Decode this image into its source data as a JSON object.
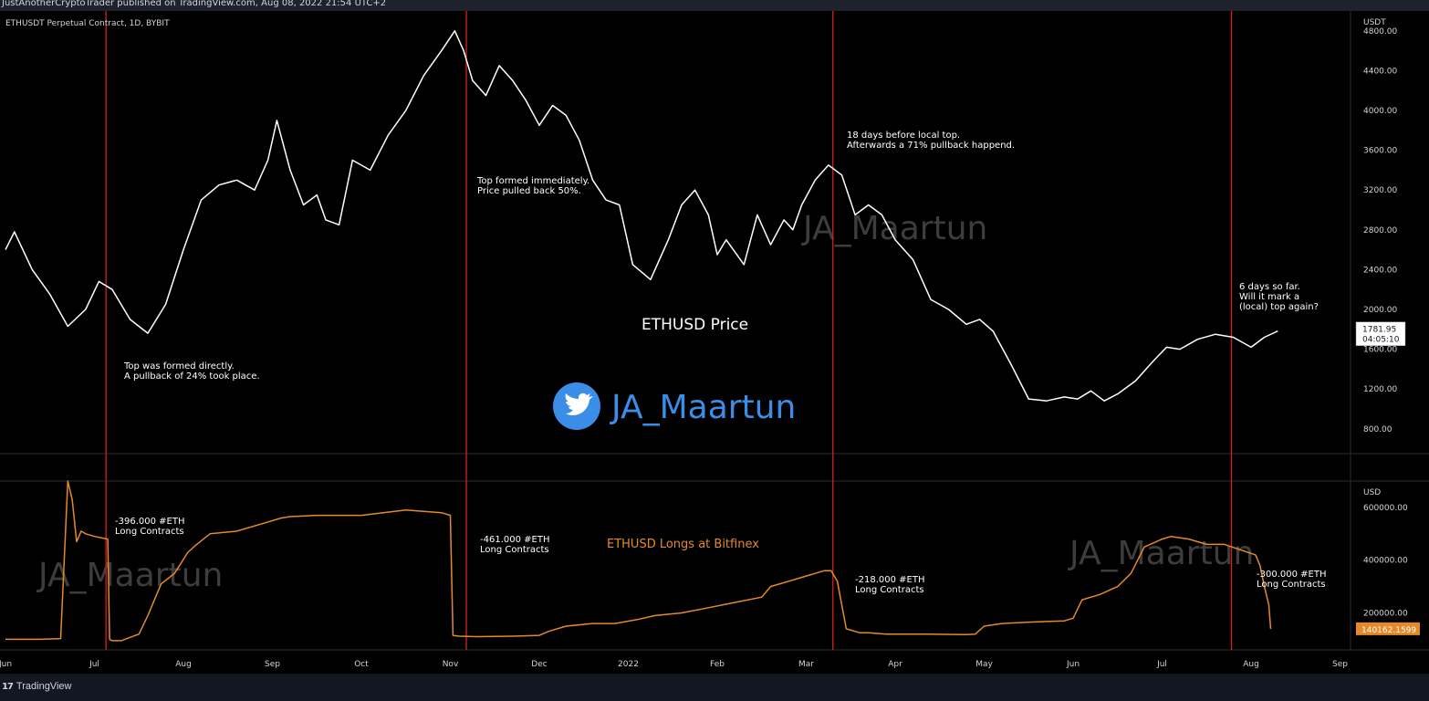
{
  "header": {
    "published": "JustAnotherCryptoTrader published on TradingView.com, Aug 08, 2022 21:54 UTC+2"
  },
  "footer": {
    "brand_mark": "17",
    "brand": "TradingView"
  },
  "chart_data": [
    {
      "type": "line",
      "symbol": "ETHUSDT Perpetual Contract, 1D, BYBIT",
      "title": "ETHUSD Price",
      "currency": "USDT",
      "ylim": [
        550,
        5000
      ],
      "yticks": [
        "4800.00",
        "4400.00",
        "4000.00",
        "3600.00",
        "3200.00",
        "2800.00",
        "2400.00",
        "2000.00",
        "1600.00",
        "1200.00",
        "800.00"
      ],
      "last_price": "1781.95",
      "countdown": "04:05:10",
      "line_color": "#ffffff",
      "watermark": "JA_Maartun",
      "x_months": [
        0,
        1,
        2,
        3,
        4,
        5,
        6,
        7,
        8,
        9,
        10,
        11,
        12,
        13,
        14
      ],
      "x_month_labels": [
        "Jun",
        "Jul",
        "Aug",
        "Sep",
        "Oct",
        "Nov",
        "Dec",
        "2022",
        "Feb",
        "Mar",
        "Apr",
        "May",
        "Jun",
        "Jul",
        "Aug",
        "Sep"
      ],
      "series": [
        {
          "x": [
            0,
            0.1,
            0.3,
            0.5,
            0.7,
            0.9,
            1.05,
            1.2,
            1.4,
            1.6,
            1.8,
            2.0,
            2.2,
            2.4,
            2.6,
            2.8,
            2.95,
            3.05,
            3.2,
            3.35,
            3.5,
            3.6,
            3.75,
            3.9,
            4.1,
            4.3,
            4.5,
            4.7,
            4.9,
            5.05,
            5.15,
            5.25,
            5.4,
            5.55,
            5.7,
            5.85,
            6.0,
            6.15,
            6.3,
            6.45,
            6.6,
            6.75,
            6.9,
            7.05,
            7.25,
            7.45,
            7.6,
            7.75,
            7.9,
            8.0,
            8.1,
            8.3,
            8.45,
            8.6,
            8.75,
            8.85,
            8.95,
            9.1,
            9.25,
            9.4,
            9.55,
            9.7,
            9.85,
            10.0,
            10.2,
            10.4,
            10.6,
            10.8,
            10.95,
            11.1,
            11.3,
            11.5,
            11.7,
            11.9,
            12.05,
            12.2,
            12.35,
            12.5,
            12.7,
            12.9,
            13.05,
            13.2,
            13.4,
            13.6,
            13.8,
            14.0,
            14.15,
            14.3
          ],
          "y": [
            2600,
            2780,
            2400,
            2150,
            1830,
            2000,
            2280,
            2200,
            1900,
            1760,
            2050,
            2600,
            3100,
            3250,
            3300,
            3200,
            3500,
            3900,
            3400,
            3050,
            3150,
            2900,
            2850,
            3500,
            3400,
            3750,
            4000,
            4350,
            4600,
            4800,
            4600,
            4300,
            4150,
            4450,
            4300,
            4100,
            3850,
            4050,
            3950,
            3700,
            3300,
            3100,
            3050,
            2450,
            2300,
            2700,
            3050,
            3200,
            2950,
            2550,
            2700,
            2450,
            2950,
            2650,
            2900,
            2800,
            3050,
            3300,
            3450,
            3350,
            2950,
            3050,
            2950,
            2700,
            2500,
            2100,
            2000,
            1850,
            1900,
            1780,
            1450,
            1100,
            1080,
            1120,
            1100,
            1180,
            1080,
            1150,
            1280,
            1480,
            1620,
            1600,
            1700,
            1750,
            1720,
            1620,
            1720,
            1782
          ]
        }
      ],
      "annotations": [
        "Top was formed directly.\nA pullback of 24% took place.",
        "Top formed immediately.\nPrice pulled back 50%.",
        "18 days before local top.\nAfterwards a 71% pullback happend.",
        "6 days so far.\nWill it mark a\n(local) top again?"
      ],
      "twitter_handle": "JA_Maartun"
    },
    {
      "type": "area",
      "title": "ETHUSD Longs at Bitfinex",
      "currency": "USD",
      "ylim": [
        60000,
        700000
      ],
      "yticks": [
        "600000.00",
        "400000.00",
        "200000.00"
      ],
      "last_value": "140162.1599",
      "line_color": "#e48a2a",
      "watermarks": [
        "JA_Maartun",
        "JA_Maartun"
      ],
      "series": [
        {
          "x": [
            0,
            0.25,
            0.4,
            0.62,
            0.7,
            0.75,
            0.8,
            0.85,
            0.9,
            1.0,
            1.15,
            1.17,
            1.2,
            1.3,
            1.5,
            1.6,
            1.75,
            1.9,
            2.05,
            2.15,
            2.3,
            2.6,
            2.9,
            3.1,
            3.2,
            3.5,
            4.0,
            4.5,
            4.7,
            4.9,
            5.0,
            5.03,
            5.1,
            5.3,
            5.7,
            6.0,
            6.1,
            6.3,
            6.6,
            6.85,
            7.1,
            7.3,
            7.6,
            7.9,
            8.2,
            8.5,
            8.6,
            8.9,
            9.1,
            9.2,
            9.28,
            9.35,
            9.45,
            9.6,
            9.7,
            9.9,
            10.3,
            10.8,
            10.9,
            11.0,
            11.2,
            11.5,
            11.9,
            12.0,
            12.1,
            12.3,
            12.5,
            12.65,
            12.8,
            13.0,
            13.1,
            13.3,
            13.5,
            13.7,
            14.05,
            14.1,
            14.15,
            14.2,
            14.22
          ],
          "y": [
            100000,
            100000,
            100000,
            103000,
            700000,
            630000,
            470000,
            510000,
            500000,
            490000,
            480000,
            100000,
            95000,
            95000,
            120000,
            190000,
            310000,
            350000,
            430000,
            460000,
            500000,
            510000,
            540000,
            560000,
            565000,
            570000,
            570000,
            590000,
            585000,
            580000,
            570000,
            115000,
            112000,
            110000,
            112000,
            115000,
            130000,
            150000,
            160000,
            160000,
            175000,
            190000,
            200000,
            220000,
            240000,
            260000,
            300000,
            330000,
            350000,
            360000,
            360000,
            320000,
            140000,
            125000,
            125000,
            120000,
            120000,
            118000,
            120000,
            150000,
            160000,
            165000,
            170000,
            180000,
            250000,
            270000,
            300000,
            350000,
            450000,
            480000,
            490000,
            480000,
            460000,
            460000,
            420000,
            380000,
            300000,
            230000,
            140000
          ]
        }
      ],
      "annotations": [
        "-396.000 #ETH\nLong Contracts",
        "-461.000 #ETH\nLong Contracts",
        "-218.000 #ETH\nLong Contracts",
        "-300.000 #ETH\nLong Contracts"
      ]
    }
  ]
}
